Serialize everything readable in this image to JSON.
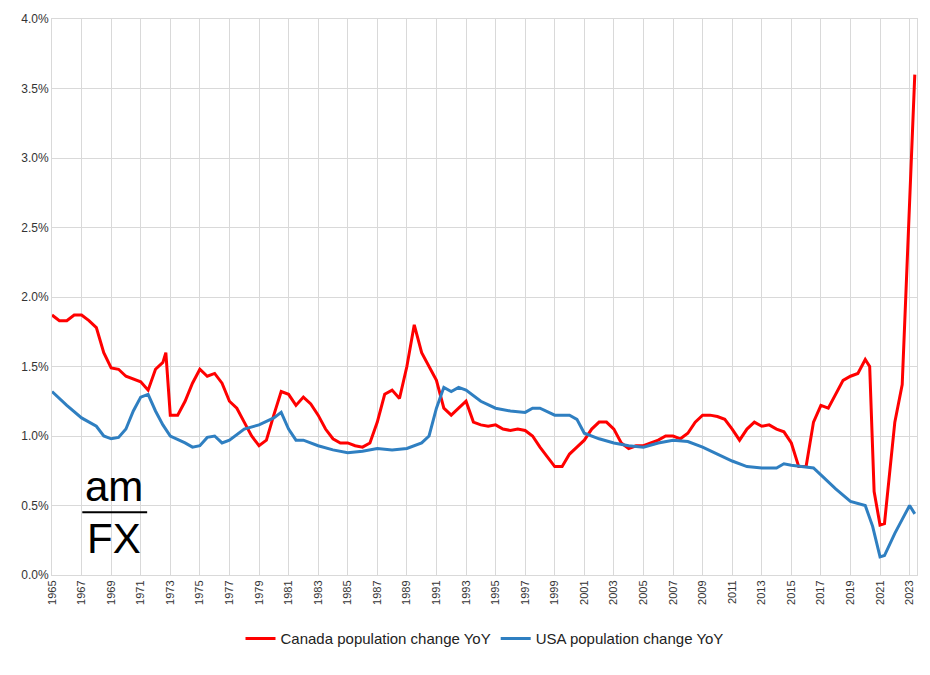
{
  "chart_data": {
    "type": "line",
    "annotations": [
      "am",
      "FX"
    ],
    "xlim": [
      1965,
      2023.5
    ],
    "xticks": [
      1965,
      1967,
      1969,
      1971,
      1973,
      1975,
      1977,
      1979,
      1981,
      1983,
      1985,
      1987,
      1989,
      1991,
      1993,
      1995,
      1997,
      1999,
      2001,
      2003,
      2005,
      2007,
      2009,
      2011,
      2013,
      2015,
      2017,
      2019,
      2021,
      2023
    ],
    "ylim": [
      0,
      4
    ],
    "yticks": [
      {
        "value": 0,
        "label": "0.0%"
      },
      {
        "value": 0.5,
        "label": "0.5%"
      },
      {
        "value": 1,
        "label": "1.0%"
      },
      {
        "value": 1.5,
        "label": "1.5%"
      },
      {
        "value": 2,
        "label": "2.0%"
      },
      {
        "value": 2.5,
        "label": "2.5%"
      },
      {
        "value": 3,
        "label": "3.0%"
      },
      {
        "value": 3.5,
        "label": "3.5%"
      },
      {
        "value": 4,
        "label": "4.0%"
      }
    ],
    "grid": true,
    "legend": "bottom",
    "series": [
      {
        "name": "Canada population change YoY",
        "color": "#ff0000",
        "x": [
          1965,
          1965.5,
          1966,
          1966.5,
          1967,
          1967.5,
          1968,
          1968.5,
          1969,
          1969.5,
          1970,
          1970.5,
          1971,
          1971.5,
          1972,
          1972.5,
          1972.7,
          1973,
          1973.5,
          1974,
          1974.5,
          1975,
          1975.5,
          1976,
          1976.5,
          1977,
          1977.5,
          1978,
          1978.5,
          1979,
          1979.5,
          1980,
          1980.5,
          1981,
          1981.5,
          1982,
          1982.5,
          1983,
          1983.5,
          1984,
          1984.5,
          1985,
          1985.5,
          1986,
          1986.5,
          1987,
          1987.5,
          1988,
          1988.5,
          1989,
          1989.5,
          1990,
          1990.5,
          1991,
          1991.5,
          1992,
          1992.5,
          1993,
          1993.5,
          1994,
          1994.5,
          1995,
          1995.5,
          1996,
          1996.5,
          1997,
          1997.5,
          1998,
          1998.5,
          1999,
          1999.5,
          2000,
          2000.5,
          2001,
          2001.5,
          2002,
          2002.5,
          2003,
          2003.5,
          2004,
          2004.5,
          2005,
          2005.5,
          2006,
          2006.5,
          2007,
          2007.5,
          2008,
          2008.5,
          2009,
          2009.5,
          2010,
          2010.5,
          2011,
          2011.5,
          2012,
          2012.5,
          2013,
          2013.5,
          2014,
          2014.5,
          2015,
          2015.5,
          2016,
          2016.5,
          2017,
          2017.5,
          2018,
          2018.5,
          2019,
          2019.5,
          2020,
          2020.3,
          2020.6,
          2021,
          2021.3,
          2021.6,
          2022,
          2022.5,
          2022.75,
          2023,
          2023.35
        ],
        "values": [
          1.87,
          1.83,
          1.83,
          1.87,
          1.87,
          1.83,
          1.78,
          1.6,
          1.49,
          1.48,
          1.43,
          1.41,
          1.39,
          1.33,
          1.48,
          1.53,
          1.6,
          1.15,
          1.15,
          1.25,
          1.38,
          1.48,
          1.43,
          1.45,
          1.38,
          1.25,
          1.2,
          1.1,
          1.0,
          0.93,
          0.97,
          1.15,
          1.32,
          1.3,
          1.22,
          1.28,
          1.23,
          1.15,
          1.05,
          0.98,
          0.95,
          0.95,
          0.93,
          0.92,
          0.95,
          1.1,
          1.3,
          1.33,
          1.27,
          1.5,
          1.8,
          1.6,
          1.5,
          1.4,
          1.2,
          1.15,
          1.2,
          1.25,
          1.1,
          1.08,
          1.07,
          1.08,
          1.05,
          1.04,
          1.05,
          1.04,
          1.0,
          0.92,
          0.85,
          0.78,
          0.78,
          0.87,
          0.92,
          0.97,
          1.05,
          1.1,
          1.1,
          1.05,
          0.95,
          0.91,
          0.93,
          0.93,
          0.95,
          0.97,
          1.0,
          1.0,
          0.98,
          1.02,
          1.1,
          1.15,
          1.15,
          1.14,
          1.12,
          1.05,
          0.97,
          1.05,
          1.1,
          1.07,
          1.08,
          1.05,
          1.03,
          0.95,
          0.78,
          0.78,
          1.1,
          1.22,
          1.2,
          1.3,
          1.4,
          1.43,
          1.45,
          1.55,
          1.5,
          0.6,
          0.36,
          0.37,
          0.7,
          1.1,
          1.37,
          2.0,
          2.7,
          3.6
        ]
      },
      {
        "name": "USA population change YoY",
        "color": "#2f7fc1",
        "x": [
          1965,
          1966,
          1967,
          1968,
          1968.5,
          1969,
          1969.5,
          1970,
          1970.5,
          1971,
          1971.5,
          1972,
          1972.5,
          1973,
          1974,
          1974.5,
          1975,
          1975.5,
          1976,
          1976.5,
          1977,
          1978,
          1979,
          1980,
          1980.5,
          1981,
          1981.5,
          1982,
          1983,
          1984,
          1985,
          1986,
          1987,
          1988,
          1989,
          1990,
          1990.5,
          1991,
          1991.5,
          1992,
          1992.5,
          1993,
          1994,
          1995,
          1996,
          1997,
          1997.5,
          1998,
          1999,
          2000,
          2000.5,
          2001,
          2002,
          2003,
          2004,
          2005,
          2006,
          2007,
          2008,
          2009,
          2010,
          2011,
          2012,
          2013,
          2014,
          2014.5,
          2015,
          2016,
          2016.5,
          2017,
          2018,
          2019,
          2020,
          2020.5,
          2021,
          2021.3,
          2022,
          2022.5,
          2023,
          2023.35
        ],
        "values": [
          1.32,
          1.22,
          1.13,
          1.07,
          1.0,
          0.98,
          0.99,
          1.05,
          1.18,
          1.28,
          1.3,
          1.18,
          1.08,
          1.0,
          0.95,
          0.92,
          0.93,
          0.99,
          1.0,
          0.95,
          0.97,
          1.05,
          1.08,
          1.13,
          1.17,
          1.05,
          0.97,
          0.97,
          0.93,
          0.9,
          0.88,
          0.89,
          0.91,
          0.9,
          0.91,
          0.95,
          1.0,
          1.2,
          1.35,
          1.32,
          1.35,
          1.33,
          1.25,
          1.2,
          1.18,
          1.17,
          1.2,
          1.2,
          1.15,
          1.15,
          1.12,
          1.02,
          0.98,
          0.95,
          0.93,
          0.92,
          0.95,
          0.97,
          0.96,
          0.92,
          0.87,
          0.82,
          0.78,
          0.77,
          0.77,
          0.8,
          0.79,
          0.78,
          0.77,
          0.72,
          0.62,
          0.53,
          0.5,
          0.35,
          0.13,
          0.14,
          0.3,
          0.4,
          0.5,
          0.44
        ]
      }
    ]
  }
}
